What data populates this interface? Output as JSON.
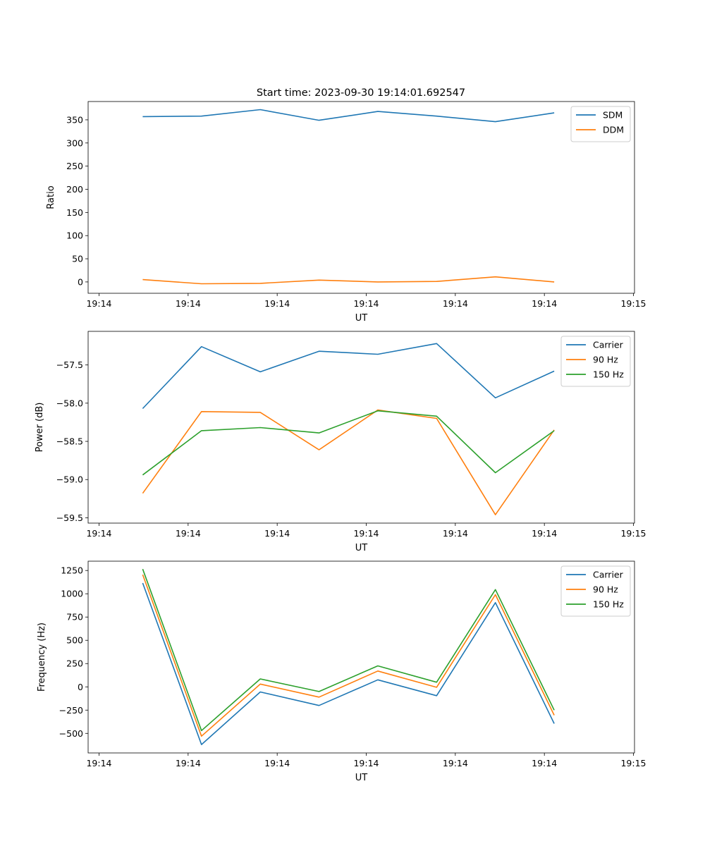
{
  "figure": {
    "title": "Start time: 2023-09-30 19:14:01.692547"
  },
  "chart_data": [
    {
      "type": "line",
      "title": "Start time: 2023-09-30 19:14:01.692547",
      "xlabel": "UT",
      "ylabel": "Ratio",
      "x_ticks": [
        "19:14",
        "19:14",
        "19:14",
        "19:14",
        "19:14",
        "19:14",
        "19:15"
      ],
      "xlim": [
        0,
        6
      ],
      "ylim": [
        -24.5,
        389.5
      ],
      "y_ticks": [
        0,
        50,
        100,
        150,
        200,
        250,
        300,
        350
      ],
      "y_tick_labels": [
        "0",
        "50",
        "100",
        "150",
        "200",
        "250",
        "300",
        "350"
      ],
      "legend": "top-right",
      "x": [
        0.49,
        1.15,
        1.81,
        2.47,
        3.13,
        3.79,
        4.45,
        5.11
      ],
      "series": [
        {
          "name": "SDM",
          "color": "#1f77b4",
          "values": [
            357,
            358,
            372,
            349,
            368,
            358,
            346,
            365
          ]
        },
        {
          "name": "DDM",
          "color": "#ff7f0e",
          "values": [
            5,
            -4,
            -3,
            4,
            0,
            1,
            11,
            0
          ]
        }
      ]
    },
    {
      "type": "line",
      "title": "",
      "xlabel": "UT",
      "ylabel": "Power (dB)",
      "x_ticks": [
        "19:14",
        "19:14",
        "19:14",
        "19:14",
        "19:14",
        "19:14",
        "19:15"
      ],
      "xlim": [
        0,
        6
      ],
      "ylim": [
        -59.57,
        -57.06
      ],
      "y_ticks": [
        -59.5,
        -59.0,
        -58.5,
        -58.0,
        -57.5
      ],
      "y_tick_labels": [
        "−59.5",
        "−59.0",
        "−58.5",
        "−58.0",
        "−57.5"
      ],
      "legend": "top-right",
      "x": [
        0.49,
        1.15,
        1.81,
        2.47,
        3.13,
        3.79,
        4.45,
        5.11
      ],
      "series": [
        {
          "name": "Carrier",
          "color": "#1f77b4",
          "values": [
            -58.07,
            -57.26,
            -57.59,
            -57.32,
            -57.36,
            -57.22,
            -57.93,
            -57.58
          ]
        },
        {
          "name": "90 Hz",
          "color": "#ff7f0e",
          "values": [
            -59.18,
            -58.11,
            -58.12,
            -58.61,
            -58.09,
            -58.2,
            -59.46,
            -58.35
          ]
        },
        {
          "name": "150 Hz",
          "color": "#2ca02c",
          "values": [
            -58.94,
            -58.36,
            -58.32,
            -58.39,
            -58.1,
            -58.17,
            -58.91,
            -58.36
          ]
        }
      ]
    },
    {
      "type": "line",
      "title": "",
      "xlabel": "UT",
      "ylabel": "Frequency (Hz)",
      "x_ticks": [
        "19:14",
        "19:14",
        "19:14",
        "19:14",
        "19:14",
        "19:14",
        "19:15"
      ],
      "xlim": [
        0,
        6
      ],
      "ylim": [
        -710,
        1350
      ],
      "y_ticks": [
        -500,
        -250,
        0,
        250,
        500,
        750,
        1000,
        1250
      ],
      "y_tick_labels": [
        "−500",
        "−250",
        "0",
        "250",
        "500",
        "750",
        "1000",
        "1250"
      ],
      "legend": "top-right",
      "x": [
        0.49,
        1.15,
        1.81,
        2.47,
        3.13,
        3.79,
        4.45,
        5.11
      ],
      "series": [
        {
          "name": "Carrier",
          "color": "#1f77b4",
          "values": [
            1115,
            -620,
            -55,
            -200,
            75,
            -95,
            905,
            -395
          ]
        },
        {
          "name": "90 Hz",
          "color": "#ff7f0e",
          "values": [
            1205,
            -530,
            30,
            -110,
            170,
            -5,
            990,
            -305
          ]
        },
        {
          "name": "150 Hz",
          "color": "#2ca02c",
          "values": [
            1265,
            -470,
            85,
            -50,
            225,
            50,
            1045,
            -250
          ]
        }
      ]
    }
  ]
}
